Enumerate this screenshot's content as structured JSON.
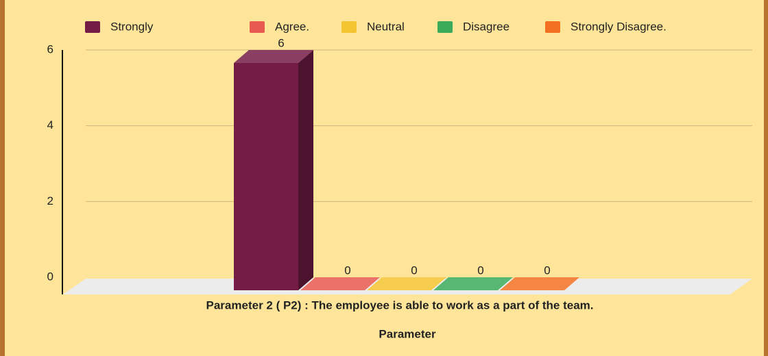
{
  "chart_data": {
    "type": "bar3d",
    "categories": [
      "Parameter 2 ( P2) : The employee is able to work as a part of the team."
    ],
    "series": [
      {
        "name": "Strongly",
        "color": "#751c46",
        "values": [
          6
        ]
      },
      {
        "name": "Agree.",
        "color": "#e8594f",
        "values": [
          0
        ]
      },
      {
        "name": "Neutral",
        "color": "#f5c431",
        "values": [
          0
        ]
      },
      {
        "name": "Disagree",
        "color": "#3bab5a",
        "values": [
          0
        ]
      },
      {
        "name": "Strongly Disagree.",
        "color": "#f37021",
        "values": [
          0
        ]
      }
    ],
    "x_label": "Parameter",
    "ylim": [
      0,
      6
    ],
    "yticks": [
      0,
      2,
      4,
      6
    ],
    "grid": true,
    "legend": "top"
  }
}
